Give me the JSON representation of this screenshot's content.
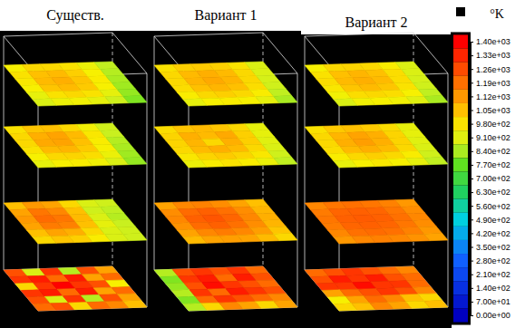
{
  "chart_data": {
    "type": "heatmap",
    "panels": [
      {
        "title": "Существ.",
        "slices": [
          [
            [
              950,
              1000,
              1000,
              980,
              930,
              860
            ],
            [
              980,
              1050,
              1060,
              1020,
              950,
              850
            ],
            [
              970,
              1060,
              1080,
              1040,
              960,
              840
            ],
            [
              950,
              1040,
              1060,
              1030,
              950,
              830
            ],
            [
              920,
              980,
              1000,
              980,
              920,
              820
            ],
            [
              900,
              930,
              940,
              920,
              880,
              800
            ]
          ],
          [
            [
              980,
              1040,
              1050,
              1000,
              940,
              880
            ],
            [
              1000,
              1080,
              1100,
              1060,
              970,
              870
            ],
            [
              1000,
              1090,
              1100,
              1050,
              960,
              850
            ],
            [
              980,
              1060,
              1070,
              1030,
              950,
              840
            ],
            [
              950,
              1000,
              1010,
              990,
              930,
              830
            ],
            [
              920,
              950,
              960,
              940,
              900,
              820
            ]
          ],
          [
            [
              1050,
              1120,
              1100,
              1000,
              900,
              880
            ],
            [
              1100,
              1180,
              1150,
              1050,
              880,
              860
            ],
            [
              1120,
              1200,
              1180,
              1060,
              900,
              850
            ],
            [
              1100,
              1170,
              1160,
              1050,
              920,
              870
            ],
            [
              1050,
              1100,
              1080,
              1000,
              900,
              880
            ],
            [
              1000,
              1040,
              1020,
              960,
              900,
              880
            ]
          ],
          [
            [
              1250,
              900,
              1300,
              850,
              1250,
              1100
            ],
            [
              1300,
              1350,
              1200,
              1350,
              1100,
              1200
            ],
            [
              1000,
              1300,
              1400,
              1300,
              1250,
              950
            ],
            [
              1300,
              1350,
              1200,
              1350,
              1100,
              1200
            ],
            [
              1250,
              900,
              1300,
              850,
              1250,
              1100
            ],
            [
              1200,
              1250,
              1000,
              1200,
              1150,
              1050
            ]
          ]
        ]
      },
      {
        "title": "Вариант 1",
        "slices": [
          [
            [
              980,
              1020,
              1030,
              1020,
              980,
              900
            ],
            [
              1000,
              1060,
              1080,
              1060,
              1000,
              900
            ],
            [
              1000,
              1070,
              1090,
              1070,
              1000,
              890
            ],
            [
              990,
              1050,
              1070,
              1050,
              990,
              880
            ],
            [
              960,
              1000,
              1020,
              1000,
              960,
              860
            ],
            [
              920,
              950,
              960,
              950,
              920,
              840
            ]
          ],
          [
            [
              990,
              1040,
              1060,
              1040,
              1000,
              920
            ],
            [
              1010,
              1080,
              1060,
              1090,
              1020,
              920
            ],
            [
              1010,
              1070,
              1000,
              1080,
              1020,
              910
            ],
            [
              1000,
              1060,
              1080,
              1060,
              1000,
              900
            ],
            [
              970,
              1010,
              1030,
              1010,
              970,
              880
            ],
            [
              930,
              960,
              980,
              960,
              930,
              860
            ]
          ],
          [
            [
              1100,
              1150,
              1160,
              1140,
              1100,
              1050
            ],
            [
              1140,
              1200,
              1220,
              1190,
              1140,
              1070
            ],
            [
              1150,
              1220,
              1240,
              1210,
              1150,
              1080
            ],
            [
              1130,
              1200,
              1220,
              1190,
              1140,
              1070
            ],
            [
              1100,
              1150,
              1170,
              1150,
              1110,
              1040
            ],
            [
              1060,
              1100,
              1110,
              1100,
              1060,
              1000
            ]
          ],
          [
            [
              850,
              1250,
              1300,
              1250,
              1300,
              1200
            ],
            [
              800,
              1300,
              1350,
              1200,
              1350,
              1250
            ],
            [
              820,
              1250,
              1380,
              1300,
              1250,
              1200
            ],
            [
              850,
              1300,
              1200,
              1350,
              1300,
              1250
            ],
            [
              800,
              1200,
              1300,
              1250,
              1200,
              1150
            ],
            [
              850,
              1000,
              1150,
              1100,
              1000,
              1100
            ]
          ]
        ]
      },
      {
        "title": "Вариант 2",
        "slices": [
          [
            [
              950,
              1000,
              1010,
              1000,
              960,
              900
            ],
            [
              980,
              1050,
              1070,
              1050,
              990,
              900
            ],
            [
              990,
              1060,
              1080,
              1060,
              990,
              890
            ],
            [
              970,
              1040,
              1060,
              1040,
              980,
              880
            ],
            [
              940,
              990,
              1000,
              990,
              950,
              860
            ],
            [
              900,
              940,
              950,
              940,
              910,
              840
            ]
          ],
          [
            [
              980,
              1030,
              1050,
              1030,
              990,
              920
            ],
            [
              1000,
              1070,
              1100,
              1080,
              1010,
              920
            ],
            [
              1000,
              1080,
              1110,
              1080,
              1010,
              910
            ],
            [
              990,
              1060,
              1080,
              1060,
              1000,
              900
            ],
            [
              960,
              1000,
              1020,
              1000,
              960,
              880
            ],
            [
              920,
              950,
              970,
              950,
              920,
              860
            ]
          ],
          [
            [
              1150,
              1180,
              1190,
              1180,
              1160,
              1120
            ],
            [
              1170,
              1210,
              1220,
              1210,
              1180,
              1140
            ],
            [
              1180,
              1220,
              1230,
              1220,
              1190,
              1150
            ],
            [
              1170,
              1210,
              1220,
              1210,
              1180,
              1140
            ],
            [
              1150,
              1190,
              1200,
              1190,
              1160,
              1120
            ],
            [
              1120,
              1150,
              1160,
              1150,
              1130,
              1100
            ]
          ],
          [
            [
              1200,
              1250,
              1300,
              1250,
              1200,
              1150
            ],
            [
              1250,
              1350,
              1300,
              1350,
              1250,
              1200
            ],
            [
              1300,
              1300,
              1380,
              1300,
              1300,
              1200
            ],
            [
              1100,
              1200,
              1250,
              1300,
              1250,
              1150
            ],
            [
              950,
              1100,
              1200,
              1150,
              1050,
              1000
            ],
            [
              1000,
              1050,
              1150,
              1100,
              1000,
              1050
            ]
          ]
        ]
      }
    ],
    "colorbar": {
      "unit": "°K",
      "range": [
        0,
        1400
      ],
      "ticks": [
        {
          "value": 1400,
          "label": "1.40e+03"
        },
        {
          "value": 1330,
          "label": "1.33e+03"
        },
        {
          "value": 1260,
          "label": "1.26e+03"
        },
        {
          "value": 1190,
          "label": "1.19e+03"
        },
        {
          "value": 1120,
          "label": "1.12e+03"
        },
        {
          "value": 1050,
          "label": "1.05e+03"
        },
        {
          "value": 980,
          "label": "9.80e+02"
        },
        {
          "value": 910,
          "label": "9.10e+02"
        },
        {
          "value": 840,
          "label": "8.40e+02"
        },
        {
          "value": 770,
          "label": "7.70e+02"
        },
        {
          "value": 700,
          "label": "7.00e+02"
        },
        {
          "value": 630,
          "label": "6.30e+02"
        },
        {
          "value": 560,
          "label": "5.60e+02"
        },
        {
          "value": 490,
          "label": "4.90e+02"
        },
        {
          "value": 420,
          "label": "4.20e+02"
        },
        {
          "value": 350,
          "label": "3.50e+02"
        },
        {
          "value": 280,
          "label": "2.80e+02"
        },
        {
          "value": 210,
          "label": "2.10e+02"
        },
        {
          "value": 140,
          "label": "1.40e+02"
        },
        {
          "value": 70,
          "label": "7.00e+01"
        },
        {
          "value": 0,
          "label": "0.00e+00"
        }
      ]
    }
  }
}
